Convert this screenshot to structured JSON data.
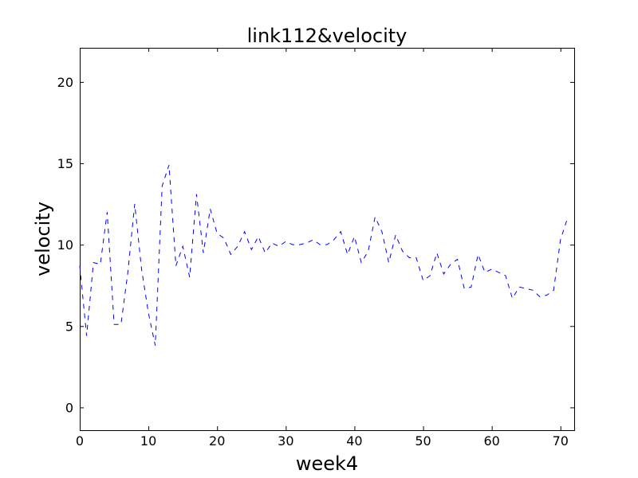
{
  "chart_data": {
    "type": "line",
    "title": "link112&velocity",
    "xlabel": "week4",
    "ylabel": "velocity",
    "xlim": [
      0,
      72
    ],
    "ylim": [
      -1.4,
      22.1
    ],
    "xticks": [
      0,
      10,
      20,
      30,
      40,
      50,
      60,
      70
    ],
    "yticks": [
      0,
      5,
      10,
      15,
      20
    ],
    "grid": false,
    "legend": "none",
    "series": [
      {
        "color": "#0000ff",
        "line_style": "dashed",
        "x": [
          0,
          1,
          2,
          3,
          4,
          5,
          6,
          7,
          8,
          9,
          10,
          11,
          12,
          13,
          14,
          15,
          16,
          17,
          18,
          19,
          20,
          21,
          22,
          23,
          24,
          25,
          26,
          27,
          28,
          29,
          30,
          31,
          32,
          33,
          34,
          35,
          36,
          37,
          38,
          39,
          40,
          41,
          42,
          43,
          44,
          45,
          46,
          47,
          48,
          49,
          50,
          51,
          52,
          53,
          54,
          55,
          56,
          57,
          58,
          59,
          60,
          61,
          62,
          63,
          64,
          65,
          66,
          67,
          68,
          69,
          70,
          71
        ],
        "values": [
          8.7,
          4.4,
          8.9,
          8.8,
          12.0,
          5.1,
          5.1,
          8.3,
          12.5,
          8.5,
          5.8,
          3.8,
          13.6,
          14.9,
          8.7,
          9.9,
          8.0,
          13.1,
          9.5,
          12.2,
          10.7,
          10.4,
          9.4,
          9.9,
          10.8,
          9.7,
          10.5,
          9.5,
          10.1,
          9.9,
          10.2,
          10.0,
          10.0,
          10.1,
          10.3,
          10.0,
          10.0,
          10.3,
          10.8,
          9.4,
          10.5,
          8.9,
          9.6,
          11.7,
          10.8,
          8.9,
          10.6,
          9.6,
          9.2,
          9.2,
          7.8,
          8.1,
          9.5,
          8.2,
          8.8,
          9.1,
          7.3,
          7.4,
          9.4,
          8.3,
          8.5,
          8.3,
          8.1,
          6.7,
          7.4,
          7.3,
          7.2,
          6.8,
          6.9,
          7.2,
          10.3,
          11.6
        ]
      }
    ]
  }
}
